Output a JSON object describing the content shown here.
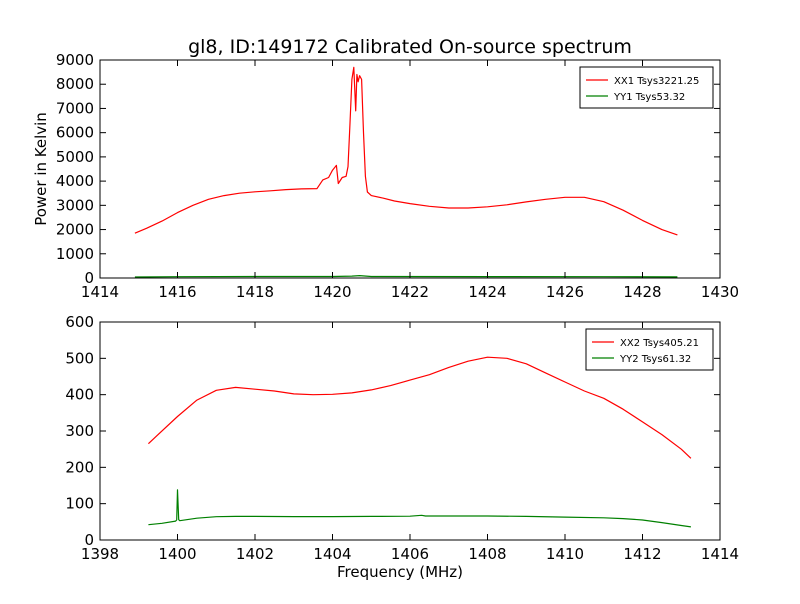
{
  "figure": {
    "title": "gl8, ID:149172 Calibrated On-source spectrum"
  },
  "chart_data": [
    {
      "type": "line",
      "title": "gl8, ID:149172 Calibrated On-source spectrum",
      "xlabel": "",
      "ylabel": "Power in Kelvin",
      "xlim": [
        1414,
        1430
      ],
      "ylim": [
        0,
        9000
      ],
      "xticks": [
        1414,
        1416,
        1418,
        1420,
        1422,
        1424,
        1426,
        1428,
        1430
      ],
      "yticks": [
        0,
        1000,
        2000,
        3000,
        4000,
        5000,
        6000,
        7000,
        8000,
        9000
      ],
      "legend_position": "top-right",
      "series": [
        {
          "name": "XX1 Tsys3221.25",
          "color": "#ff0000",
          "x": [
            1414.9,
            1415.2,
            1415.6,
            1416.0,
            1416.4,
            1416.8,
            1417.2,
            1417.6,
            1418.0,
            1418.4,
            1418.8,
            1419.2,
            1419.6,
            1419.75,
            1419.9,
            1420.0,
            1420.1,
            1420.15,
            1420.25,
            1420.35,
            1420.4,
            1420.45,
            1420.5,
            1420.55,
            1420.6,
            1420.63,
            1420.66,
            1420.7,
            1420.75,
            1420.8,
            1420.85,
            1420.9,
            1421.0,
            1421.3,
            1421.6,
            1422.0,
            1422.5,
            1423.0,
            1423.5,
            1424.0,
            1424.5,
            1425.0,
            1425.5,
            1426.0,
            1426.5,
            1427.0,
            1427.5,
            1428.0,
            1428.5,
            1428.9
          ],
          "y": [
            1850,
            2050,
            2350,
            2700,
            3000,
            3250,
            3400,
            3500,
            3560,
            3600,
            3650,
            3680,
            3690,
            4050,
            4150,
            4450,
            4650,
            3900,
            4150,
            4200,
            4600,
            6300,
            8200,
            8700,
            6900,
            8400,
            8100,
            8350,
            8200,
            6000,
            4200,
            3550,
            3400,
            3300,
            3180,
            3070,
            2960,
            2890,
            2890,
            2940,
            3020,
            3140,
            3250,
            3330,
            3330,
            3150,
            2800,
            2380,
            2000,
            1780
          ]
        },
        {
          "name": "YY1 Tsys53.32",
          "color": "#008000",
          "x": [
            1414.9,
            1416.0,
            1418.0,
            1420.0,
            1420.5,
            1420.7,
            1421.0,
            1424.0,
            1427.0,
            1428.9
          ],
          "y": [
            40,
            55,
            60,
            62,
            80,
            100,
            60,
            58,
            55,
            45
          ]
        }
      ]
    },
    {
      "type": "line",
      "title": "",
      "xlabel": "Frequency (MHz)",
      "ylabel": "",
      "xlim": [
        1398,
        1414
      ],
      "ylim": [
        0,
        600
      ],
      "xticks": [
        1398,
        1400,
        1402,
        1404,
        1406,
        1408,
        1410,
        1412,
        1414
      ],
      "yticks": [
        0,
        100,
        200,
        300,
        400,
        500,
        600
      ],
      "legend_position": "top-right",
      "series": [
        {
          "name": "XX2 Tsys405.21",
          "color": "#ff0000",
          "x": [
            1399.25,
            1399.5,
            1400.0,
            1400.5,
            1401.0,
            1401.5,
            1402.0,
            1402.5,
            1403.0,
            1403.5,
            1404.0,
            1404.5,
            1405.0,
            1405.5,
            1406.0,
            1406.5,
            1407.0,
            1407.5,
            1408.0,
            1408.5,
            1409.0,
            1409.5,
            1410.0,
            1410.5,
            1411.0,
            1411.5,
            1412.0,
            1412.5,
            1413.0,
            1413.25
          ],
          "y": [
            265,
            290,
            340,
            385,
            412,
            420,
            415,
            410,
            402,
            400,
            401,
            405,
            413,
            425,
            440,
            455,
            475,
            492,
            503,
            500,
            485,
            460,
            435,
            410,
            390,
            360,
            325,
            290,
            250,
            225
          ]
        },
        {
          "name": "YY2 Tsys61.32",
          "color": "#008000",
          "x": [
            1399.25,
            1399.6,
            1399.95,
            1399.98,
            1400.0,
            1400.03,
            1400.06,
            1400.5,
            1401.0,
            1401.5,
            1402.0,
            1403.0,
            1404.0,
            1405.0,
            1406.0,
            1406.3,
            1406.4,
            1407.0,
            1408.0,
            1409.0,
            1410.0,
            1411.0,
            1411.5,
            1412.0,
            1412.5,
            1413.0,
            1413.25
          ],
          "y": [
            42,
            46,
            52,
            55,
            138,
            56,
            53,
            60,
            64,
            65,
            65,
            64.5,
            64.5,
            65,
            65.5,
            68,
            66,
            66,
            66,
            65,
            63,
            61,
            59,
            55,
            48,
            40,
            36
          ]
        }
      ]
    }
  ]
}
